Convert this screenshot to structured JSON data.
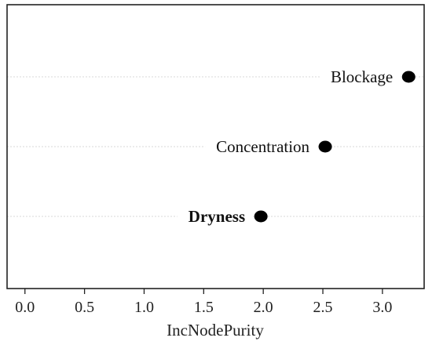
{
  "chart_data": {
    "type": "scatter",
    "title": "",
    "xlabel": "IncNodePurity",
    "ylabel": "",
    "xlim": [
      -0.15,
      3.35
    ],
    "xticks": [
      "0.0",
      "0.5",
      "1.0",
      "1.5",
      "2.0",
      "2.5",
      "3.0"
    ],
    "grid": true,
    "points": [
      {
        "label": "Blockage",
        "value": 3.22,
        "bold": false
      },
      {
        "label": "Concentration",
        "value": 2.52,
        "bold": false
      },
      {
        "label": "Dryness",
        "value": 1.98,
        "bold": true
      }
    ]
  }
}
